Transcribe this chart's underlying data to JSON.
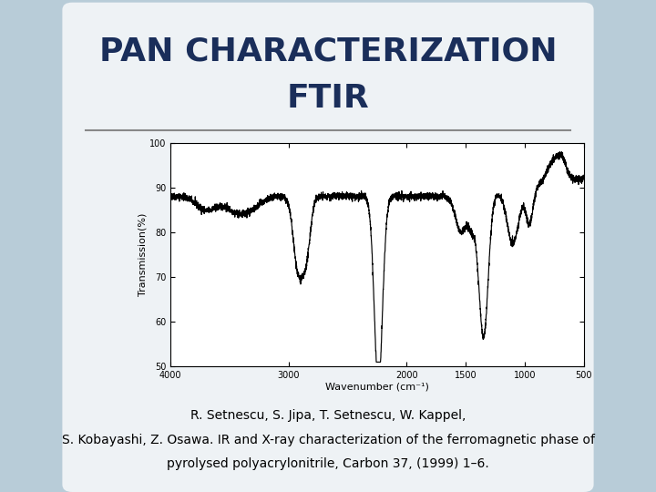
{
  "title_line1": "PAN CHARACTERIZATION",
  "title_line2": "FTIR",
  "title_color": "#1a2e5a",
  "title_fontsize": 26,
  "bg_color": "#b8ccd8",
  "panel_color": "#eef2f5",
  "reference_line1": "R. Setnescu, S. Jipa, T. Setnescu, W. Kappel,",
  "reference_line2": "S. Kobayashi, Z. Osawa. IR and X-ray characterization of the ferromagnetic phase of",
  "reference_line3_pre": "pyrolysed polyacrylonitrile, ",
  "reference_line3_italic": "Carbon",
  "reference_line3_post": " 37, (1999) 1–6.",
  "ref_fontsize": 10,
  "divider_color": "#888888",
  "ylabel": "Transmission(%)",
  "xlabel": "Wavenumber (cm⁻¹)",
  "ytick_labels": [
    "50",
    "60",
    "70",
    "80",
    "90",
    "100"
  ],
  "ytick_vals": [
    50,
    60,
    70,
    80,
    90,
    100
  ],
  "xtick_labels": [
    "4000",
    "3000",
    "2000",
    "1500",
    "1000",
    "500"
  ],
  "xtick_vals": [
    4000,
    3000,
    2000,
    1500,
    1000,
    500
  ],
  "xlim": [
    4000,
    500
  ],
  "ylim": [
    50,
    100
  ]
}
